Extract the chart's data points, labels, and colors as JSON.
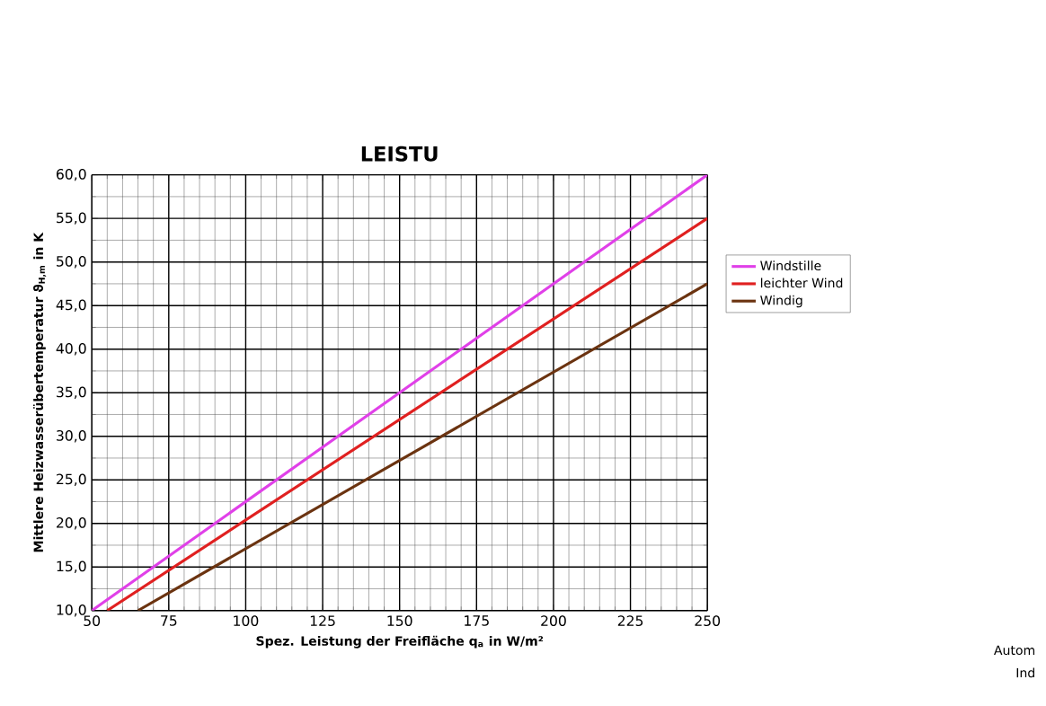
{
  "chart_data": {
    "type": "line",
    "title": "LEISTU",
    "xlabel": "Spez. Leistung der Freifläche q$_{a}$ in W/m²",
    "ylabel": "Mittlere Heizwasserübertemperatur ϑ$_{H,m}$ in K",
    "xlim": [
      50,
      250
    ],
    "ylim": [
      10,
      60
    ],
    "xticks": [
      50,
      75,
      100,
      125,
      150,
      175,
      200,
      225,
      250
    ],
    "yticks": [
      {
        "value": 10,
        "label": "10,0"
      },
      {
        "value": 15,
        "label": "15,0"
      },
      {
        "value": 20,
        "label": "20,0"
      },
      {
        "value": 25,
        "label": "25,0"
      },
      {
        "value": 30,
        "label": "30,0"
      },
      {
        "value": 35,
        "label": "35,0"
      },
      {
        "value": 40,
        "label": "40,0"
      },
      {
        "value": 45,
        "label": "45,0"
      },
      {
        "value": 50,
        "label": "50,0"
      },
      {
        "value": 55,
        "label": "55,0"
      },
      {
        "value": 60,
        "label": "60,0"
      }
    ],
    "grid": true,
    "legend": "right",
    "marker": "none",
    "line_style": "solid",
    "annotations": [
      "Autom",
      "Ind"
    ],
    "series": [
      {
        "name": "Windstille",
        "color": "#e040e8",
        "x": [
          50,
          250
        ],
        "values": [
          10,
          60
        ]
      },
      {
        "name": "leichter Wind",
        "color": "#e02020",
        "x": [
          55,
          250
        ],
        "values": [
          10,
          55
        ]
      },
      {
        "name": "Windig",
        "color": "#6b3310",
        "x": [
          65,
          250
        ],
        "values": [
          10,
          47.5
        ]
      }
    ]
  }
}
